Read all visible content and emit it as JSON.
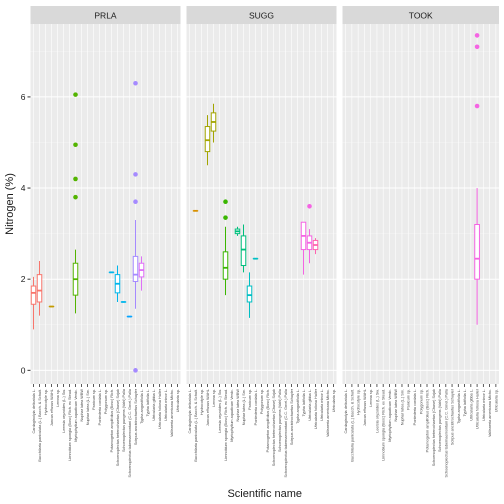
{
  "chart_data": {
    "type": "boxplot",
    "facets": [
      "PRLA",
      "SUGG",
      "TOOK"
    ],
    "xlabel": "Scientific name",
    "ylabel": "Nitrogen (%)",
    "ylim": [
      -0.3,
      7.6
    ],
    "yticks": [
      0,
      2,
      4,
      6
    ],
    "grid": true,
    "legend": "none",
    "categories": [
      "Cardaginolyia delicatula L.",
      "Bacchilaria paniculata (L.) Bacch. & Schult.",
      "Hydrocotyle sp.",
      "Juncus effusus WAHL",
      "Lemna sp.",
      "Leersia oryzoides (L.) Sw.",
      "Limnobium spongia (Bosc) Rich. ex Steud.",
      "Myriophyllum aquaticum Verdc.",
      "Nuphar lutea WBW",
      "Nuphar lutea (L.) Sm.",
      "Panicum sp.",
      "Pontederia cordata L.",
      "Polygonum sp.",
      "Potamogeton amplifolius (Bosc) Rich.",
      "Schoenoplectus heterochaetus (Chase) Sojak",
      "Schoenoplectus pungens (Vahl) Palla",
      "Schoenoplectus tabernaemontani (C.C. Gmel.) Palla",
      "Scirpus ancistrochaetus Schuyler",
      "Typha angustifolia L.",
      "Typha latifolia L.",
      "Utricularia gibba L.",
      "Utricularia foliosa Haller",
      "Utricularia minor L.",
      "Vallisneria americana Michx.",
      "Utricularia sp."
    ],
    "panels": [
      {
        "facet": "PRLA",
        "boxes": [
          {
            "category": 0,
            "color": "#F8766D",
            "q1": 1.45,
            "median": 1.7,
            "q3": 1.85,
            "low": 0.9,
            "high": 2.05,
            "outliers": []
          },
          {
            "category": 1,
            "color": "#F8766D",
            "q1": 1.5,
            "median": 1.75,
            "q3": 2.1,
            "low": 1.2,
            "high": 2.4,
            "outliers": []
          },
          {
            "category": 3,
            "color": "#C49A00",
            "q1": 1.4,
            "median": 1.4,
            "q3": 1.4,
            "low": 1.4,
            "high": 1.4,
            "outliers": []
          },
          {
            "category": 7,
            "color": "#53B400",
            "q1": 1.65,
            "median": 2.0,
            "q3": 2.35,
            "low": 1.25,
            "high": 2.65,
            "outliers": [
              3.8,
              4.2,
              4.95,
              6.05
            ]
          },
          {
            "category": 13,
            "color": "#00B6EB",
            "q1": 2.15,
            "median": 2.15,
            "q3": 2.15,
            "low": 2.15,
            "high": 2.15,
            "outliers": []
          },
          {
            "category": 14,
            "color": "#00B6EB",
            "q1": 1.7,
            "median": 1.9,
            "q3": 2.1,
            "low": 1.5,
            "high": 2.3,
            "outliers": []
          },
          {
            "category": 15,
            "color": "#00B6EB",
            "q1": 1.5,
            "median": 1.5,
            "q3": 1.5,
            "low": 1.5,
            "high": 1.5,
            "outliers": []
          },
          {
            "category": 16,
            "color": "#06A4FF",
            "q1": 1.18,
            "median": 1.18,
            "q3": 1.18,
            "low": 1.18,
            "high": 1.18,
            "outliers": []
          },
          {
            "category": 17,
            "color": "#A58AFF",
            "q1": 1.95,
            "median": 2.1,
            "q3": 2.5,
            "low": 1.35,
            "high": 3.3,
            "outliers": [
              0.0,
              3.7,
              4.3,
              6.3
            ]
          },
          {
            "category": 18,
            "color": "#DF70F8",
            "q1": 2.05,
            "median": 2.2,
            "q3": 2.35,
            "low": 1.75,
            "high": 2.5,
            "outliers": []
          }
        ]
      },
      {
        "facet": "SUGG",
        "boxes": [
          {
            "category": 1,
            "color": "#D89000",
            "q1": 3.5,
            "median": 3.5,
            "q3": 3.5,
            "low": 3.5,
            "high": 3.5,
            "outliers": []
          },
          {
            "category": 3,
            "color": "#A3A500",
            "q1": 4.8,
            "median": 5.05,
            "q3": 5.35,
            "low": 4.5,
            "high": 5.6,
            "outliers": []
          },
          {
            "category": 4,
            "color": "#A3A500",
            "q1": 5.25,
            "median": 5.45,
            "q3": 5.65,
            "low": 5.0,
            "high": 5.85,
            "outliers": []
          },
          {
            "category": 6,
            "color": "#39B600",
            "q1": 2.0,
            "median": 2.25,
            "q3": 2.6,
            "low": 1.65,
            "high": 3.15,
            "outliers": [
              3.35,
              3.7
            ]
          },
          {
            "category": 8,
            "color": "#00BF7D",
            "q1": 3.0,
            "median": 3.05,
            "q3": 3.1,
            "low": 2.95,
            "high": 3.15,
            "outliers": []
          },
          {
            "category": 9,
            "color": "#00BF7D",
            "q1": 2.3,
            "median": 2.65,
            "q3": 2.95,
            "low": 2.15,
            "high": 3.2,
            "outliers": []
          },
          {
            "category": 10,
            "color": "#00BFC4",
            "q1": 1.5,
            "median": 1.65,
            "q3": 1.85,
            "low": 1.15,
            "high": 2.15,
            "outliers": []
          },
          {
            "category": 11,
            "color": "#00BFC4",
            "q1": 2.45,
            "median": 2.45,
            "q3": 2.45,
            "low": 2.45,
            "high": 2.45,
            "outliers": []
          },
          {
            "category": 19,
            "color": "#F564E3",
            "q1": 2.65,
            "median": 2.95,
            "q3": 3.25,
            "low": 2.1,
            "high": 3.25,
            "outliers": []
          },
          {
            "category": 20,
            "color": "#F564E3",
            "q1": 2.65,
            "median": 2.8,
            "q3": 2.95,
            "low": 2.35,
            "high": 3.1,
            "outliers": [
              3.6
            ]
          },
          {
            "category": 21,
            "color": "#FF64B0",
            "q1": 2.65,
            "median": 2.75,
            "q3": 2.85,
            "low": 2.55,
            "high": 2.9,
            "outliers": []
          }
        ]
      },
      {
        "facet": "TOOK",
        "boxes": [
          {
            "category": 21,
            "color": "#F564E3",
            "q1": 2.0,
            "median": 2.45,
            "q3": 3.2,
            "low": 1.0,
            "high": 4.0,
            "outliers": [
              5.8,
              7.1,
              7.35
            ]
          }
        ]
      }
    ]
  }
}
